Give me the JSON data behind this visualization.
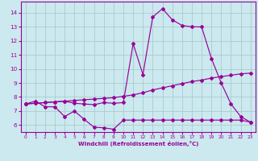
{
  "background_color": "#cbe9ef",
  "line_color": "#990099",
  "grid_color": "#aacccc",
  "xlabel": "Windchill (Refroidissement éolien,°C)",
  "xlim": [
    -0.5,
    23.5
  ],
  "ylim": [
    5.5,
    14.8
  ],
  "yticks": [
    6,
    7,
    8,
    9,
    10,
    11,
    12,
    13,
    14
  ],
  "xticks": [
    0,
    1,
    2,
    3,
    4,
    5,
    6,
    7,
    8,
    9,
    10,
    11,
    12,
    13,
    14,
    15,
    16,
    17,
    18,
    19,
    20,
    21,
    22,
    23
  ],
  "series1_x": [
    0,
    1,
    2,
    3,
    4,
    5,
    6,
    7,
    8,
    9,
    10,
    11,
    12,
    13,
    14,
    15,
    16,
    17,
    18,
    19,
    20,
    21,
    22,
    23
  ],
  "series1_y": [
    7.5,
    7.7,
    7.3,
    7.3,
    6.6,
    7.0,
    6.4,
    5.85,
    5.8,
    5.7,
    6.35,
    6.35,
    6.35,
    6.35,
    6.35,
    6.35,
    6.35,
    6.35,
    6.35,
    6.35,
    6.35,
    6.35,
    6.35,
    6.2
  ],
  "series2_x": [
    0,
    1,
    2,
    3,
    4,
    5,
    6,
    7,
    8,
    9,
    10,
    11,
    12,
    13,
    14,
    15,
    16,
    17,
    18,
    19,
    20,
    21,
    22,
    23
  ],
  "series2_y": [
    7.5,
    7.55,
    7.6,
    7.65,
    7.7,
    7.75,
    7.8,
    7.85,
    7.9,
    7.95,
    8.05,
    8.15,
    8.3,
    8.5,
    8.65,
    8.8,
    8.95,
    9.1,
    9.2,
    9.35,
    9.45,
    9.55,
    9.65,
    9.7
  ],
  "series3_x": [
    0,
    1,
    2,
    3,
    4,
    5,
    6,
    7,
    8,
    9,
    10,
    11,
    12,
    13,
    14,
    15,
    16,
    17,
    18,
    19,
    20,
    21,
    22,
    23
  ],
  "series3_y": [
    7.5,
    7.55,
    7.6,
    7.65,
    7.7,
    7.55,
    7.5,
    7.45,
    7.6,
    7.55,
    7.6,
    11.8,
    9.6,
    13.7,
    14.3,
    13.5,
    13.1,
    13.0,
    13.0,
    10.75,
    9.0,
    7.5,
    6.6,
    6.2
  ]
}
